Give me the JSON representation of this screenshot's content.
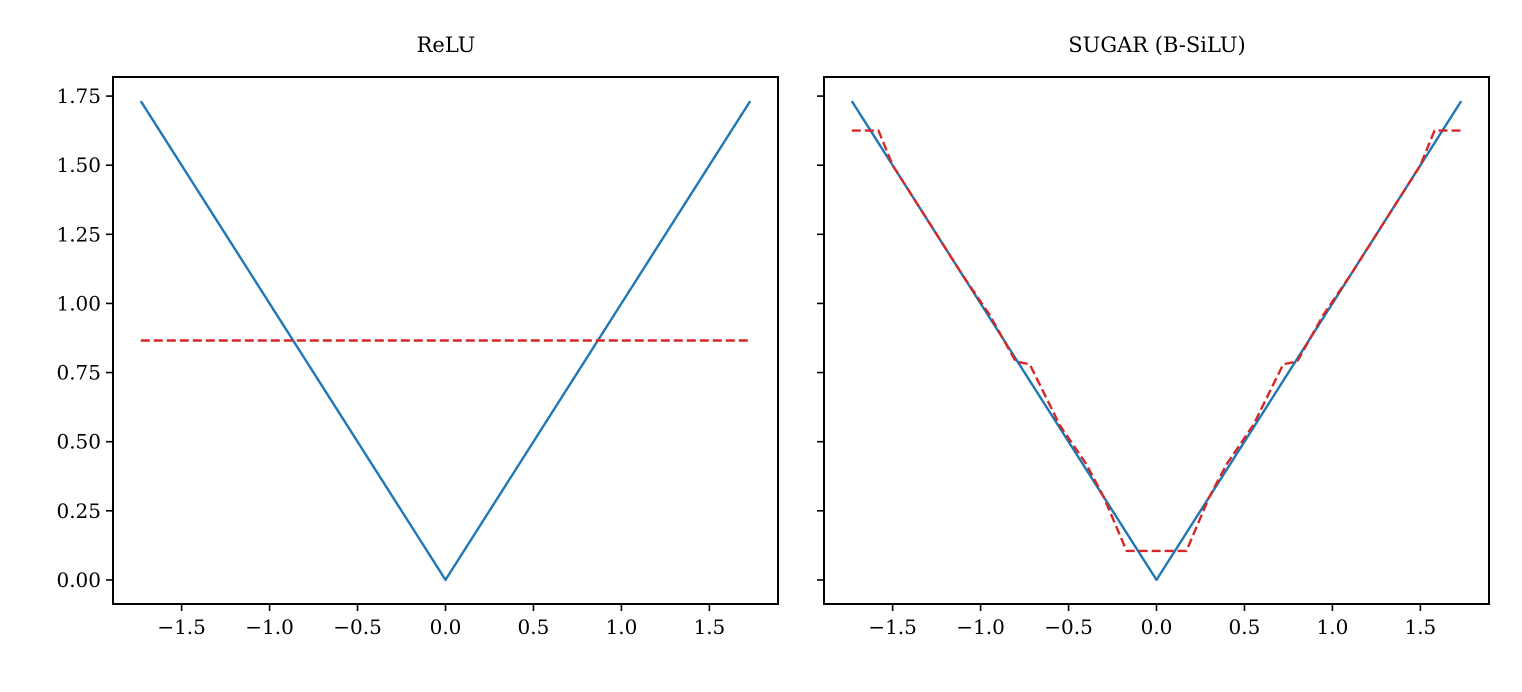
{
  "chart_data": [
    {
      "type": "line",
      "title": "ReLU",
      "xlabel": "",
      "ylabel": "",
      "xlim": [
        -1.89,
        1.89
      ],
      "ylim": [
        -0.087,
        1.819
      ],
      "xticks": [
        -1.5,
        -1.0,
        -0.5,
        0.0,
        0.5,
        1.0,
        1.5
      ],
      "xtick_labels": [
        "−1.5",
        "−1.0",
        "−0.5",
        "0.0",
        "0.5",
        "1.0",
        "1.5"
      ],
      "yticks": [
        0.0,
        0.25,
        0.5,
        0.75,
        1.0,
        1.25,
        1.5,
        1.75
      ],
      "ytick_labels": [
        "0.00",
        "0.25",
        "0.50",
        "0.75",
        "1.00",
        "1.25",
        "1.50",
        "1.75"
      ],
      "show_ytick_labels": true,
      "grid": false,
      "series": [
        {
          "color": "#1f77b4",
          "style": "solid",
          "x": [
            -1.732,
            0.0,
            1.732
          ],
          "y": [
            1.732,
            0.0,
            1.732
          ]
        },
        {
          "color": "#d62728",
          "style": "dashed",
          "x": [
            -1.732,
            1.732
          ],
          "y": [
            0.866,
            0.866
          ]
        }
      ]
    },
    {
      "type": "line",
      "title": "SUGAR (B-SiLU)",
      "xlabel": "",
      "ylabel": "",
      "xlim": [
        -1.89,
        1.89
      ],
      "ylim": [
        -0.087,
        1.819
      ],
      "xticks": [
        -1.5,
        -1.0,
        -0.5,
        0.0,
        0.5,
        1.0,
        1.5
      ],
      "xtick_labels": [
        "−1.5",
        "−1.0",
        "−0.5",
        "0.0",
        "0.5",
        "1.0",
        "1.5"
      ],
      "yticks": [
        0.0,
        0.25,
        0.5,
        0.75,
        1.0,
        1.25,
        1.5,
        1.75
      ],
      "ytick_labels": [
        "0.00",
        "0.25",
        "0.50",
        "0.75",
        "1.00",
        "1.25",
        "1.50",
        "1.75"
      ],
      "show_ytick_labels": false,
      "grid": false,
      "series": [
        {
          "color": "#1f77b4",
          "style": "solid",
          "x": [
            -1.732,
            0.0,
            1.732
          ],
          "y": [
            1.732,
            0.0,
            1.732
          ]
        },
        {
          "color": "#d62728",
          "style": "dashed",
          "x": [
            -1.732,
            -1.58,
            -1.5,
            -1.3,
            -1.1,
            -0.95,
            -0.8,
            -0.72,
            -0.55,
            -0.4,
            -0.3,
            -0.17,
            0.17,
            0.3,
            0.4,
            0.55,
            0.72,
            0.8,
            0.95,
            1.1,
            1.3,
            1.5,
            1.58,
            1.732
          ],
          "y": [
            1.625,
            1.625,
            1.5,
            1.3,
            1.1,
            0.96,
            0.79,
            0.78,
            0.56,
            0.42,
            0.3,
            0.105,
            0.105,
            0.3,
            0.42,
            0.56,
            0.78,
            0.79,
            0.96,
            1.1,
            1.3,
            1.5,
            1.625,
            1.625
          ]
        }
      ]
    }
  ]
}
